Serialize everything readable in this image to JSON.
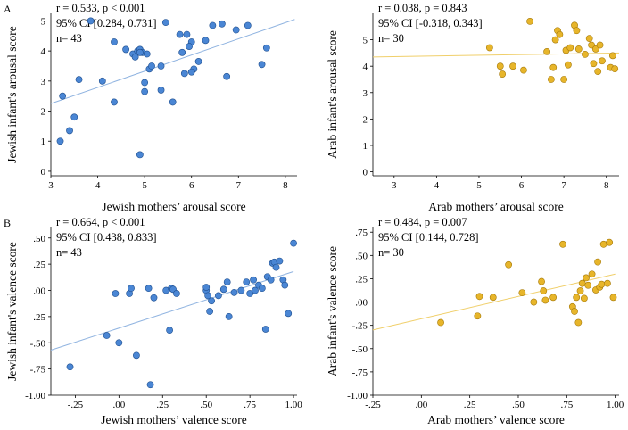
{
  "panel_letters": [
    "A",
    "B"
  ],
  "chart_data": [
    {
      "type": "scatter",
      "id": "jewish-arousal",
      "color": "#4a86d4",
      "stroke": "#1f4f8f",
      "fit_color": "#8fb3e0",
      "xlabel": "Jewish mothers’ arousal score",
      "ylabel": "Jewish infant's arousal score",
      "xlim": [
        3,
        8.25
      ],
      "ylim": [
        -0.15,
        5.25
      ],
      "xticks": [
        3,
        4,
        5,
        6,
        7,
        8
      ],
      "xtick_labels": [
        "3",
        "4",
        "5",
        "6",
        "7",
        "8"
      ],
      "yticks": [
        0,
        1,
        2,
        3,
        4,
        5
      ],
      "ytick_labels": [
        "0",
        "1",
        "2",
        "3",
        "4",
        "5"
      ],
      "stats": [
        "r = 0.533, p < 0.001",
        "95% CI [0.284, 0.731]",
        "n= 43"
      ],
      "fit": [
        [
          3,
          2.25
        ],
        [
          8.2,
          5.05
        ]
      ],
      "x": [
        3.2,
        3.25,
        3.4,
        3.5,
        3.6,
        3.85,
        4.1,
        4.35,
        4.35,
        4.6,
        4.75,
        4.8,
        4.85,
        4.9,
        4.9,
        4.95,
        5.0,
        5.0,
        5.05,
        5.1,
        5.15,
        5.35,
        5.35,
        5.45,
        5.6,
        5.75,
        5.8,
        5.85,
        5.9,
        6.0,
        6.05,
        6.15,
        6.3,
        6.45,
        6.65,
        6.75,
        6.95,
        7.2,
        7.5,
        7.6,
        4.9,
        6.0,
        5.95
      ],
      "y": [
        1.0,
        2.5,
        1.35,
        1.8,
        3.05,
        5.0,
        3.0,
        4.3,
        2.3,
        4.05,
        3.9,
        3.8,
        4.0,
        4.05,
        0.55,
        3.95,
        2.95,
        2.65,
        3.9,
        3.4,
        3.5,
        3.5,
        2.7,
        4.95,
        2.3,
        4.55,
        3.95,
        3.25,
        4.55,
        4.3,
        3.4,
        3.65,
        4.35,
        4.85,
        4.9,
        3.15,
        4.7,
        4.85,
        3.55,
        4.1,
        3.95,
        3.3,
        4.15
      ]
    },
    {
      "type": "scatter",
      "id": "arab-arousal",
      "color": "#e7b52a",
      "stroke": "#a67a0a",
      "fit_color": "#f0cf6a",
      "xlabel": "Arab mothers’ arousal score",
      "ylabel": "Arab infant's arousal score",
      "xlim": [
        2.5,
        8.3
      ],
      "ylim": [
        -0.15,
        6.0
      ],
      "xticks": [
        3,
        4,
        5,
        6,
        7,
        8
      ],
      "xtick_labels": [
        "3",
        "4",
        "5",
        "6",
        "7",
        "8"
      ],
      "yticks": [
        0,
        1,
        2,
        3,
        4,
        5
      ],
      "ytick_labels": [
        "0",
        "1",
        "2",
        "3",
        "4",
        "5"
      ],
      "stats": [
        "r = 0.038, p = 0.843",
        "95% CI [-0.318, 0.343]",
        "n= 30"
      ],
      "fit": [
        [
          2.5,
          4.35
        ],
        [
          8.3,
          4.5
        ]
      ],
      "x": [
        5.25,
        5.5,
        5.55,
        5.8,
        6.05,
        6.2,
        6.6,
        6.7,
        6.75,
        6.8,
        6.85,
        6.9,
        7.0,
        7.05,
        7.1,
        7.15,
        7.25,
        7.3,
        7.35,
        7.5,
        7.6,
        7.65,
        7.7,
        7.75,
        7.8,
        7.85,
        7.9,
        8.1,
        8.15,
        8.2
      ],
      "y": [
        4.7,
        4.0,
        3.7,
        4.0,
        3.85,
        5.7,
        4.55,
        3.5,
        3.95,
        5.0,
        5.35,
        5.2,
        3.5,
        4.6,
        4.05,
        4.7,
        5.55,
        5.35,
        4.65,
        4.45,
        5.05,
        4.8,
        4.1,
        4.65,
        3.8,
        4.8,
        4.2,
        3.95,
        4.4,
        3.9
      ]
    },
    {
      "type": "scatter",
      "id": "jewish-valence",
      "color": "#4a86d4",
      "stroke": "#1f4f8f",
      "fit_color": "#8fb3e0",
      "xlabel": "Jewish mothers’ valence score",
      "ylabel": "Jewish infant's valence score",
      "xlim": [
        -0.39,
        1.02
      ],
      "ylim": [
        -1.0,
        0.6
      ],
      "xticks": [
        -0.25,
        0,
        0.25,
        0.5,
        0.75,
        1.0
      ],
      "xtick_labels": [
        "-.25",
        ".00",
        ".25",
        ".50",
        ".75",
        "1.00"
      ],
      "yticks": [
        -1.0,
        -0.75,
        -0.5,
        -0.25,
        0,
        0.25,
        0.5
      ],
      "ytick_labels": [
        "-1.00",
        "-.75",
        "-.50",
        "-.25",
        ".00",
        ".25",
        ".50"
      ],
      "stats": [
        "r = 0.664, p < 0.001",
        "95% CI [0.438, 0.833]",
        "n= 43"
      ],
      "fit": [
        [
          -0.39,
          -0.57
        ],
        [
          1.0,
          0.18
        ]
      ],
      "x": [
        -0.28,
        -0.07,
        -0.02,
        0.0,
        0.06,
        0.07,
        0.1,
        0.17,
        0.18,
        0.2,
        0.27,
        0.29,
        0.3,
        0.31,
        0.33,
        0.5,
        0.5,
        0.51,
        0.52,
        0.53,
        0.57,
        0.6,
        0.62,
        0.63,
        0.66,
        0.7,
        0.73,
        0.75,
        0.77,
        0.78,
        0.8,
        0.82,
        0.84,
        0.85,
        0.87,
        0.88,
        0.89,
        0.9,
        0.92,
        0.94,
        0.95,
        0.97,
        1.0
      ],
      "y": [
        -0.73,
        -0.43,
        -0.03,
        -0.5,
        -0.03,
        0.02,
        -0.62,
        0.02,
        -0.9,
        -0.07,
        0.0,
        -0.38,
        0.02,
        0.01,
        -0.03,
        0.0,
        0.03,
        -0.05,
        -0.2,
        -0.1,
        -0.05,
        0.01,
        0.08,
        -0.25,
        -0.02,
        0.0,
        0.08,
        -0.03,
        0.1,
        0.0,
        0.05,
        0.02,
        -0.37,
        0.13,
        0.1,
        0.26,
        0.27,
        0.22,
        0.28,
        0.1,
        0.05,
        -0.22,
        0.45
      ]
    },
    {
      "type": "scatter",
      "id": "arab-valence",
      "color": "#e7b52a",
      "stroke": "#a67a0a",
      "fit_color": "#f0cf6a",
      "xlabel": "Arab mothers’ valence score",
      "ylabel": "Arab infant's valence score",
      "xlim": [
        -0.25,
        1.02
      ],
      "ylim": [
        -1.0,
        0.8
      ],
      "xticks": [
        -0.25,
        0,
        0.25,
        0.5,
        0.75,
        1.0
      ],
      "xtick_labels": [
        "-.25",
        ".00",
        ".25",
        ".50",
        ".75",
        "1.00"
      ],
      "yticks": [
        -1.0,
        -0.75,
        -0.5,
        -0.25,
        0,
        0.25,
        0.5,
        0.75
      ],
      "ytick_labels": [
        "-1.00",
        "-.75",
        "-.50",
        "-.25",
        ".00",
        ".25",
        ".50",
        ".75"
      ],
      "stats": [
        "r = 0.484, p = 0.007",
        "95% CI [0.144, 0.728]",
        "n= 30"
      ],
      "fit": [
        [
          -0.25,
          -0.3
        ],
        [
          1.0,
          0.3
        ]
      ],
      "x": [
        0.1,
        0.29,
        0.3,
        0.37,
        0.45,
        0.52,
        0.58,
        0.62,
        0.63,
        0.64,
        0.68,
        0.73,
        0.78,
        0.79,
        0.8,
        0.81,
        0.82,
        0.83,
        0.84,
        0.85,
        0.86,
        0.88,
        0.9,
        0.91,
        0.92,
        0.93,
        0.94,
        0.96,
        0.97,
        0.99
      ],
      "y": [
        -0.22,
        -0.15,
        0.06,
        0.05,
        0.4,
        0.1,
        0.0,
        0.22,
        0.12,
        0.02,
        0.05,
        0.62,
        -0.05,
        -0.1,
        0.05,
        -0.22,
        0.12,
        0.2,
        0.04,
        0.26,
        0.18,
        0.3,
        0.13,
        0.43,
        0.16,
        0.19,
        0.62,
        0.2,
        0.64,
        0.05
      ]
    }
  ]
}
